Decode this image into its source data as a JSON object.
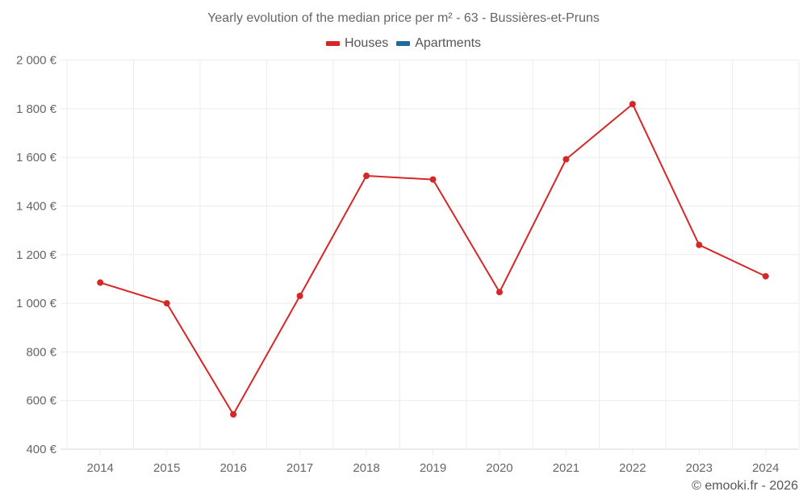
{
  "chart_data": {
    "type": "line",
    "title": "Yearly evolution of the median price per m² - 63 - Bussières-et-Pruns",
    "xlabel": "",
    "ylabel": "",
    "categories": [
      "2014",
      "2015",
      "2016",
      "2017",
      "2018",
      "2019",
      "2020",
      "2021",
      "2022",
      "2023",
      "2024"
    ],
    "series": [
      {
        "name": "Houses",
        "color": "#d62728",
        "values": [
          1085,
          1000,
          543,
          1030,
          1524,
          1509,
          1046,
          1592,
          1819,
          1240,
          1111
        ]
      },
      {
        "name": "Apartments",
        "color": "#1f6a9e",
        "values": []
      }
    ],
    "ylim": [
      400,
      2000
    ],
    "yticks": [
      400,
      600,
      800,
      1000,
      1200,
      1400,
      1600,
      1800,
      2000
    ],
    "ytick_labels": [
      "400 €",
      "600 €",
      "800 €",
      "1 000 €",
      "1 200 €",
      "1 400 €",
      "1 600 €",
      "1 800 €",
      "2 000 €"
    ],
    "grid": true,
    "legend_position": "top"
  },
  "legend": {
    "houses": "Houses",
    "apartments": "Apartments"
  },
  "credit": "© emooki.fr - 2026"
}
